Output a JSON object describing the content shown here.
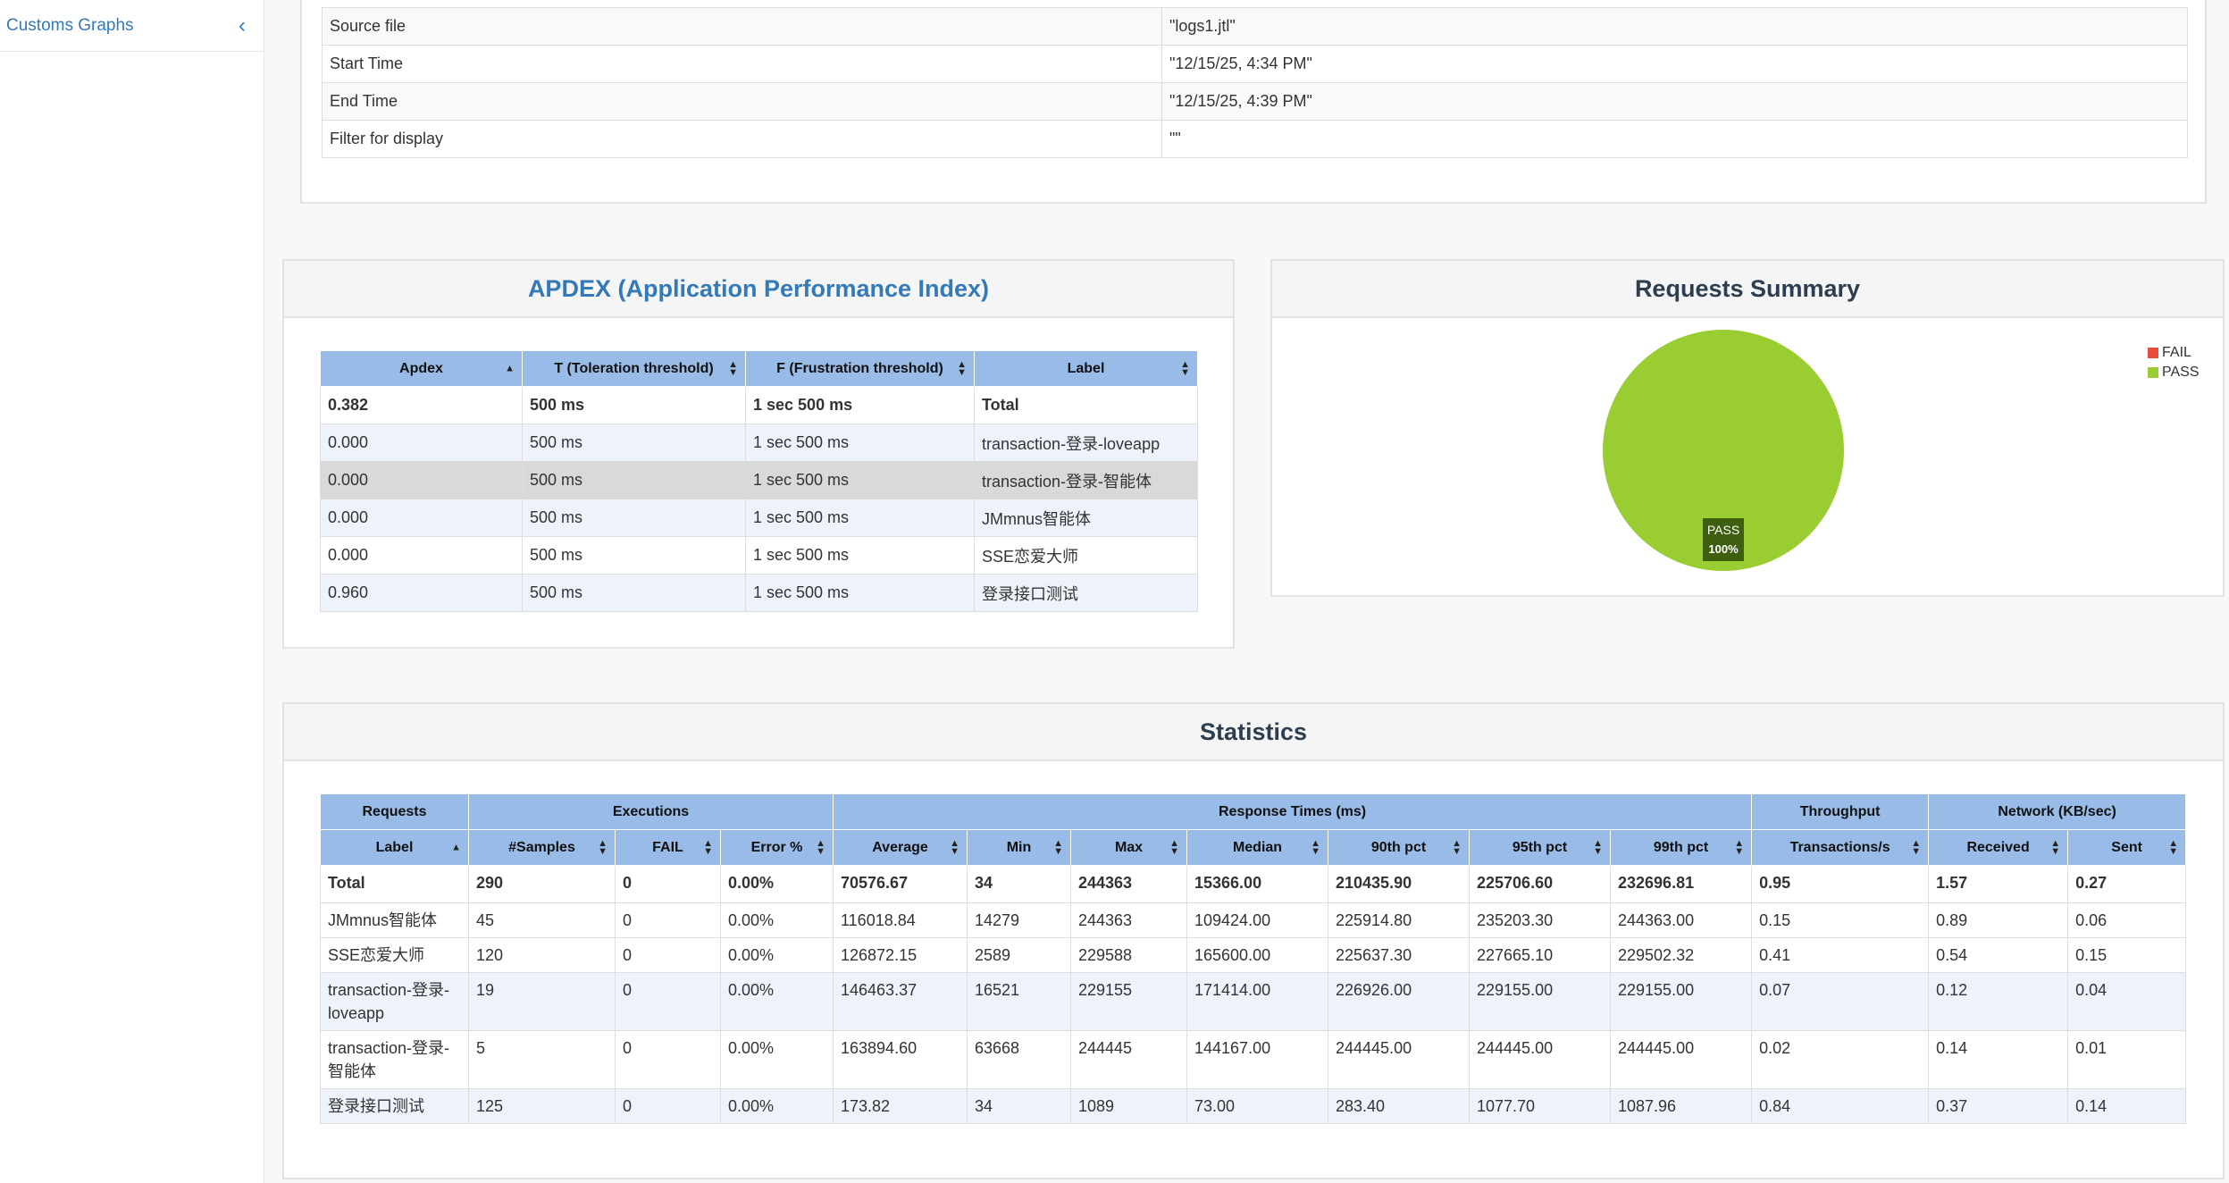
{
  "sidebar": {
    "item_label": "Customs Graphs",
    "chevron": "‹"
  },
  "info": {
    "rows": [
      {
        "label": "Source file",
        "value": "\"logs1.jtl\""
      },
      {
        "label": "Start Time",
        "value": "\"12/15/25, 4:34 PM\""
      },
      {
        "label": "End Time",
        "value": "\"12/15/25, 4:39 PM\""
      },
      {
        "label": "Filter for display",
        "value": "\"\""
      }
    ]
  },
  "apdex": {
    "title": "APDEX (Application Performance Index)",
    "headers": [
      "Apdex",
      "T (Toleration threshold)",
      "F (Frustration threshold)",
      "Label"
    ],
    "rows": [
      [
        "0.382",
        "500 ms",
        "1 sec 500 ms",
        "Total"
      ],
      [
        "0.000",
        "500 ms",
        "1 sec 500 ms",
        "transaction-登录-loveapp"
      ],
      [
        "0.000",
        "500 ms",
        "1 sec 500 ms",
        "transaction-登录-智能体"
      ],
      [
        "0.000",
        "500 ms",
        "1 sec 500 ms",
        "JMmnus智能体"
      ],
      [
        "0.000",
        "500 ms",
        "1 sec 500 ms",
        "SSE恋爱大师"
      ],
      [
        "0.960",
        "500 ms",
        "1 sec 500 ms",
        "登录接口测试"
      ]
    ]
  },
  "summary": {
    "title": "Requests Summary",
    "legend": [
      {
        "label": "FAIL",
        "color": "#e74c3c"
      },
      {
        "label": "PASS",
        "color": "#9acd32"
      }
    ],
    "slice_label": "PASS",
    "slice_pct": "100%",
    "colors": {
      "pass": "#9acd32",
      "label_bg": "#3e5e10"
    }
  },
  "chart_data": {
    "type": "pie",
    "title": "Requests Summary",
    "categories": [
      "FAIL",
      "PASS"
    ],
    "values": [
      0,
      100
    ],
    "legend_position": "top-right"
  },
  "stats": {
    "title": "Statistics",
    "group_headers": [
      "Requests",
      "Executions",
      "Response Times (ms)",
      "Throughput",
      "Network (KB/sec)"
    ],
    "headers": [
      "Label",
      "#Samples",
      "FAIL",
      "Error %",
      "Average",
      "Min",
      "Max",
      "Median",
      "90th pct",
      "95th pct",
      "99th pct",
      "Transactions/s",
      "Received",
      "Sent"
    ],
    "rows": [
      [
        "Total",
        "290",
        "0",
        "0.00%",
        "70576.67",
        "34",
        "244363",
        "15366.00",
        "210435.90",
        "225706.60",
        "232696.81",
        "0.95",
        "1.57",
        "0.27"
      ],
      [
        "JMmnus智能体",
        "45",
        "0",
        "0.00%",
        "116018.84",
        "14279",
        "244363",
        "109424.00",
        "225914.80",
        "235203.30",
        "244363.00",
        "0.15",
        "0.89",
        "0.06"
      ],
      [
        "SSE恋爱大师",
        "120",
        "0",
        "0.00%",
        "126872.15",
        "2589",
        "229588",
        "165600.00",
        "225637.30",
        "227665.10",
        "229502.32",
        "0.41",
        "0.54",
        "0.15"
      ],
      [
        "transaction-登录-loveapp",
        "19",
        "0",
        "0.00%",
        "146463.37",
        "16521",
        "229155",
        "171414.00",
        "226926.00",
        "229155.00",
        "229155.00",
        "0.07",
        "0.12",
        "0.04"
      ],
      [
        "transaction-登录-智能体",
        "5",
        "0",
        "0.00%",
        "163894.60",
        "63668",
        "244445",
        "144167.00",
        "244445.00",
        "244445.00",
        "244445.00",
        "0.02",
        "0.14",
        "0.01"
      ],
      [
        "登录接口测试",
        "125",
        "0",
        "0.00%",
        "173.82",
        "34",
        "1089",
        "73.00",
        "283.40",
        "1077.70",
        "1087.96",
        "0.84",
        "0.37",
        "0.14"
      ]
    ]
  }
}
